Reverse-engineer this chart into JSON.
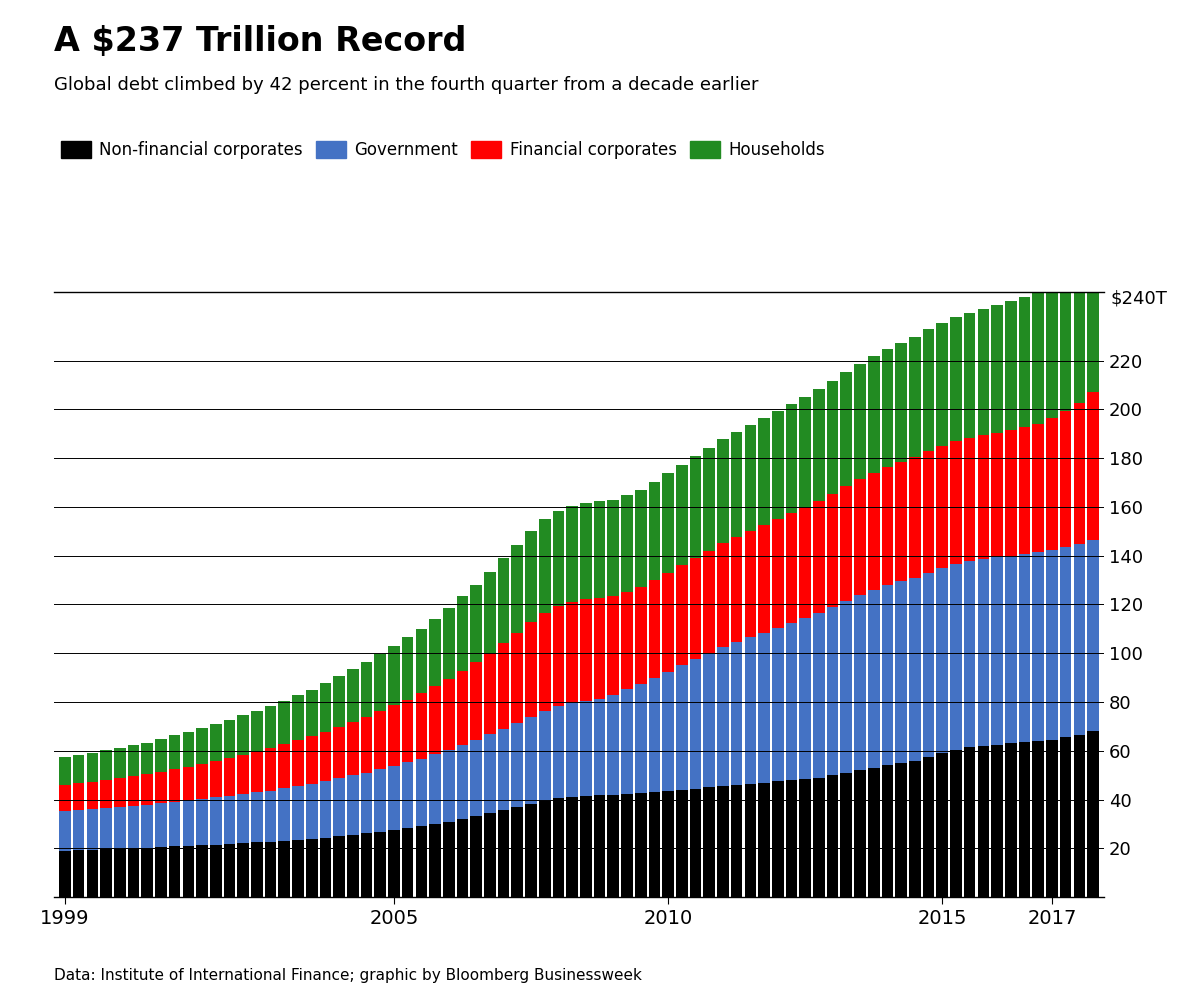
{
  "title": "A $237 Trillion Record",
  "subtitle": "Global debt climbed by 42 percent in the fourth quarter from a decade earlier",
  "footnote": "Data: Institute of International Finance; graphic by Bloomberg Businessweek",
  "colors": {
    "non_financial": "#000000",
    "government": "#4472C4",
    "financial": "#FF0000",
    "households": "#228B22"
  },
  "legend_labels": [
    "Non-financial corporates",
    "Government",
    "Financial corporates",
    "Households"
  ],
  "yticks": [
    20,
    40,
    60,
    80,
    100,
    120,
    140,
    160,
    180,
    200,
    220
  ],
  "ytop_label": "$240T",
  "ylim": [
    0,
    248
  ],
  "non_financial": [
    19.0,
    19.2,
    19.4,
    19.6,
    19.8,
    20.0,
    20.2,
    20.5,
    20.8,
    21.0,
    21.2,
    21.5,
    21.8,
    22.1,
    22.4,
    22.7,
    23.1,
    23.5,
    23.9,
    24.4,
    25.0,
    25.6,
    26.2,
    26.9,
    27.6,
    28.3,
    29.1,
    30.0,
    31.0,
    32.0,
    33.1,
    34.3,
    35.6,
    36.8,
    38.1,
    39.5,
    40.5,
    41.0,
    41.5,
    41.8,
    42.0,
    42.2,
    42.5,
    43.0,
    43.5,
    44.0,
    44.5,
    45.0,
    45.5,
    46.0,
    46.5,
    47.0,
    47.5,
    48.0,
    48.5,
    49.0,
    50.0,
    51.0,
    52.0,
    53.0,
    54.0,
    55.0,
    56.0,
    57.5,
    59.0,
    60.5,
    61.5,
    62.0,
    62.5,
    63.0,
    63.5,
    64.0,
    64.5,
    65.5,
    66.5,
    68.0
  ],
  "government": [
    16.5,
    16.7,
    16.9,
    17.1,
    17.3,
    17.5,
    17.7,
    18.0,
    18.4,
    18.7,
    19.0,
    19.4,
    19.8,
    20.2,
    20.6,
    21.0,
    21.5,
    22.0,
    22.5,
    23.1,
    23.7,
    24.3,
    24.9,
    25.6,
    26.3,
    27.0,
    27.7,
    28.5,
    29.4,
    30.3,
    31.3,
    32.4,
    33.5,
    34.7,
    35.9,
    37.0,
    37.8,
    38.5,
    39.0,
    39.5,
    41.0,
    43.0,
    45.0,
    47.0,
    49.0,
    51.0,
    53.0,
    55.0,
    57.0,
    58.5,
    60.0,
    61.5,
    63.0,
    64.5,
    66.0,
    67.5,
    69.0,
    70.5,
    72.0,
    73.0,
    74.0,
    74.5,
    75.0,
    75.5,
    75.8,
    76.0,
    76.2,
    76.5,
    76.8,
    77.0,
    77.3,
    77.5,
    77.8,
    78.0,
    78.3,
    78.5
  ],
  "financial": [
    10.5,
    10.7,
    11.0,
    11.3,
    11.6,
    12.0,
    12.4,
    12.8,
    13.3,
    13.8,
    14.3,
    14.9,
    15.5,
    16.1,
    16.7,
    17.4,
    18.1,
    18.8,
    19.5,
    20.3,
    21.1,
    21.9,
    22.8,
    23.7,
    24.7,
    25.7,
    26.7,
    27.9,
    29.2,
    30.6,
    32.0,
    33.6,
    35.3,
    37.0,
    38.7,
    40.2,
    41.0,
    41.5,
    41.8,
    41.5,
    40.5,
    40.0,
    39.8,
    40.0,
    40.5,
    41.0,
    41.5,
    42.0,
    42.8,
    43.2,
    43.5,
    44.0,
    44.5,
    45.0,
    45.5,
    46.0,
    46.5,
    47.0,
    47.5,
    48.0,
    48.5,
    49.0,
    49.5,
    50.0,
    50.3,
    50.5,
    50.7,
    50.8,
    51.0,
    51.5,
    52.0,
    52.5,
    54.0,
    56.0,
    58.0,
    60.5
  ],
  "households": [
    11.5,
    11.7,
    11.9,
    12.2,
    12.5,
    12.8,
    13.1,
    13.5,
    13.9,
    14.3,
    14.7,
    15.2,
    15.7,
    16.2,
    16.7,
    17.3,
    17.9,
    18.5,
    19.2,
    20.0,
    20.8,
    21.6,
    22.5,
    23.5,
    24.5,
    25.5,
    26.6,
    27.8,
    29.1,
    30.4,
    31.7,
    33.1,
    34.5,
    35.9,
    37.3,
    38.5,
    39.0,
    39.3,
    39.5,
    39.5,
    39.5,
    39.6,
    39.8,
    40.2,
    40.8,
    41.3,
    41.8,
    42.3,
    42.7,
    43.1,
    43.5,
    43.9,
    44.3,
    44.8,
    45.2,
    45.7,
    46.2,
    46.7,
    47.2,
    47.7,
    48.2,
    48.7,
    49.2,
    49.8,
    50.3,
    50.8,
    51.3,
    51.8,
    52.3,
    52.8,
    53.3,
    53.8,
    54.3,
    54.8,
    55.5,
    56.3
  ],
  "xtick_positions": [
    0,
    24,
    44,
    64,
    72
  ],
  "xtick_labels": [
    "1999",
    "2005",
    "2010",
    "2015",
    "2017"
  ]
}
